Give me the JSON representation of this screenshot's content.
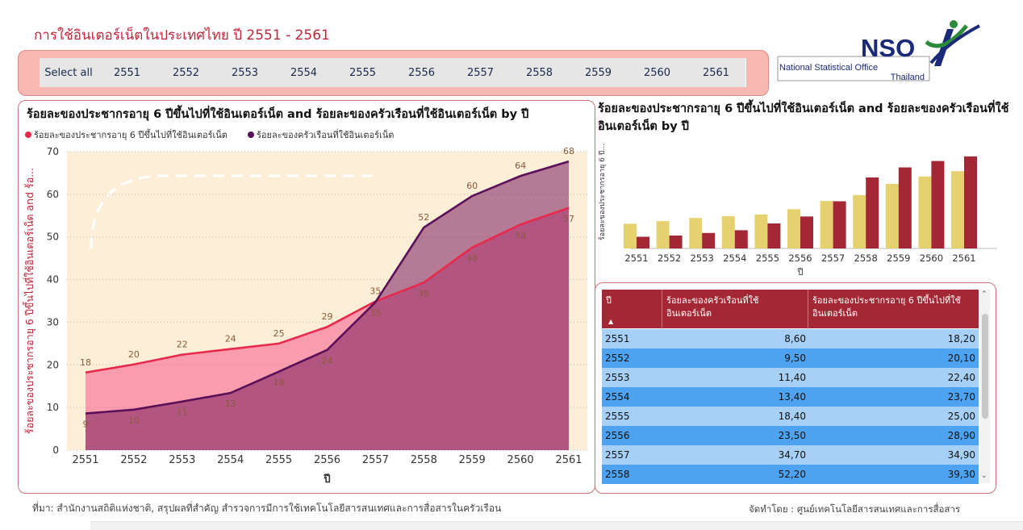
{
  "page": {
    "title": "การใช้อินเตอร์เน็ตในประเทศไทย ปี 2551 - 2561"
  },
  "slicer": {
    "items": [
      "Select all",
      "2551",
      "2552",
      "2553",
      "2554",
      "2555",
      "2556",
      "2557",
      "2558",
      "2559",
      "2560",
      "2561"
    ]
  },
  "logo": {
    "text": "NSO",
    "line1": "National Statistical Office",
    "line2": "Thailand"
  },
  "chart1": {
    "title": "ร้อยละของประชากรอายุ 6 ปีขึ้นไปที่ใช้อินเตอร์เน็ต and ร้อยละของครัวเรือนที่ใช้อินเตอร์เน็ต by ปี",
    "legend": [
      "ร้อยละของประชากรอายุ 6 ปีขึ้นไปที่ใช้อินเตอร์เน็ต",
      "ร้อยละของครัวเรือนที่ใช้อินเตอร์เน็ต"
    ],
    "ylabel": "ร้อยละของประชากรอายุ 6 ปีขึ้นไปที่ใช้อินเตอร์เน็ต and ร้อ...",
    "xlabel": "ปี"
  },
  "chart2": {
    "title": "ร้อยละของประชากรอายุ 6 ปีขึ้นไปที่ใช้อินเตอร์เน็ต and ร้อยละของครัวเรือนที่ใช้อินเตอร์เน็ต by ปี",
    "ylabel": "ร้อยละของประชากรอายุ 6 ปี...",
    "xlabel": "ปี"
  },
  "chart_data": [
    {
      "type": "area",
      "x": [
        "2551",
        "2552",
        "2553",
        "2554",
        "2555",
        "2556",
        "2557",
        "2558",
        "2559",
        "2560",
        "2561"
      ],
      "series": [
        {
          "name": "ร้อยละของประชากรอายุ 6 ปีขึ้นไปที่ใช้อินเตอร์เน็ต",
          "values": [
            18.2,
            20.1,
            22.4,
            23.7,
            25.0,
            28.9,
            34.9,
            39.3,
            47.5,
            52.9,
            56.8
          ],
          "labels": [
            "18",
            "20",
            "22",
            "24",
            "25",
            "29",
            "35",
            "39",
            "48",
            "53",
            "57"
          ],
          "color": "#e8294c"
        },
        {
          "name": "ร้อยละของครัวเรือนที่ใช้อินเตอร์เน็ต",
          "values": [
            8.6,
            9.5,
            11.4,
            13.4,
            18.4,
            23.5,
            34.7,
            52.2,
            59.6,
            64.3,
            67.7
          ],
          "labels": [
            "9",
            "10",
            "11",
            "13",
            "18",
            "24",
            "35",
            "52",
            "60",
            "64",
            "68"
          ],
          "color": "#5a1058"
        }
      ],
      "title": "ร้อยละของประชากรอายุ 6 ปีขึ้นไปที่ใช้อินเตอร์เน็ต and ร้อยละของครัวเรือนที่ใช้อินเตอร์เน็ต by ปี",
      "ylim": [
        0,
        70
      ],
      "yticks": [
        0,
        10,
        20,
        30,
        40,
        50,
        60,
        70
      ],
      "grid": true,
      "legend": "top-left"
    },
    {
      "type": "bar",
      "categories": [
        "2551",
        "2552",
        "2553",
        "2554",
        "2555",
        "2556",
        "2557",
        "2558",
        "2559",
        "2560",
        "2561"
      ],
      "series": [
        {
          "name": "ร้อยละของประชากรอายุ 6 ปีขึ้นไปที่ใช้อินเตอร์เน็ต",
          "values": [
            18.2,
            20.1,
            22.4,
            23.7,
            25.0,
            28.9,
            34.9,
            39.3,
            47.5,
            52.9,
            56.8
          ],
          "color": "#e6d170"
        },
        {
          "name": "ร้อยละของครัวเรือนที่ใช้อินเตอร์เน็ต",
          "values": [
            8.6,
            9.5,
            11.4,
            13.4,
            18.4,
            23.5,
            34.7,
            52.2,
            59.6,
            64.3,
            67.7
          ],
          "color": "#a32734"
        }
      ],
      "ylim": [
        0,
        70
      ],
      "grid": false
    }
  ],
  "table": {
    "headers": [
      "ปี",
      "ร้อยละของครัวเรือนที่ใช้อินเตอร์เน็ต",
      "ร้อยละของประชากรอายุ 6 ปีขึ้นไปที่ใช้อินเตอร์เน็ต"
    ],
    "rows": [
      [
        "2551",
        "8,60",
        "18,20"
      ],
      [
        "2552",
        "9,50",
        "20,10"
      ],
      [
        "2553",
        "11,40",
        "22,40"
      ],
      [
        "2554",
        "13,40",
        "23,70"
      ],
      [
        "2555",
        "18,40",
        "25,00"
      ],
      [
        "2556",
        "23,50",
        "28,90"
      ],
      [
        "2557",
        "34,70",
        "34,90"
      ],
      [
        "2558",
        "52,20",
        "39,30"
      ]
    ]
  },
  "footer": {
    "source": "ที่มา: สำนักงานสถิติแห่งชาติ, สรุปผลที่สำคัญ สำรวจการมีการใช้เทคโนโลยีสารสนเทศและการสื่อสารในครัวเรือน",
    "credit": "จัดทำโดย : ศูนย์เทคโนโลยีสารสนเทศและการสื่อสาร"
  },
  "colors": {
    "accent": "#c0263a",
    "table_header": "#a32734",
    "row_light": "#a6d0f5",
    "row_dark": "#4ea3f0",
    "slicer_bg": "#f8b7b0"
  }
}
